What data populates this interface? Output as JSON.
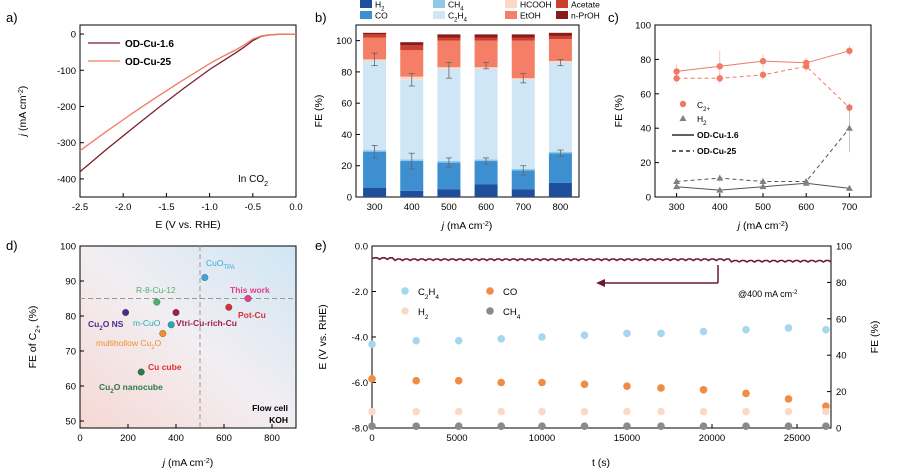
{
  "chart_data": [
    {
      "panel": "a",
      "type": "line",
      "xlabel": "E (V vs. RHE)",
      "ylabel": "j (mA cm-2)",
      "xlim": [
        -2.5,
        0.0
      ],
      "ylim": [
        -450,
        25
      ],
      "xticks": [
        -2.5,
        -2.0,
        -1.5,
        -1.0,
        -0.5,
        0.0
      ],
      "yticks": [
        0,
        -100,
        -200,
        -300,
        -400
      ],
      "annotation": "In CO2",
      "series": [
        {
          "name": "OD-Cu-1.6",
          "color": "#7a1f2b",
          "x": [
            -2.5,
            -2.2,
            -1.9,
            -1.6,
            -1.3,
            -1.0,
            -0.85,
            -0.7,
            -0.6,
            -0.5,
            -0.4,
            -0.3,
            -0.2,
            -0.1,
            0.0
          ],
          "y": [
            -380,
            -320,
            -262,
            -205,
            -150,
            -98,
            -75,
            -52,
            -36,
            -18,
            -6,
            -2,
            -1,
            0,
            0
          ]
        },
        {
          "name": "OD-Cu-25",
          "color": "#f07b64",
          "x": [
            -2.5,
            -2.2,
            -1.9,
            -1.6,
            -1.3,
            -1.0,
            -0.85,
            -0.7,
            -0.6,
            -0.5,
            -0.4,
            -0.3,
            -0.2,
            -0.1,
            0.0
          ],
          "y": [
            -322,
            -270,
            -220,
            -172,
            -126,
            -82,
            -62,
            -44,
            -30,
            -14,
            -5,
            -2,
            -1,
            0,
            0
          ]
        }
      ]
    },
    {
      "panel": "b",
      "type": "bar",
      "stacked": true,
      "xlabel": "j (mA cm-2)",
      "ylabel": "FE (%)",
      "ylim": [
        0,
        110
      ],
      "yticks": [
        0,
        20,
        40,
        60,
        80,
        100
      ],
      "categories": [
        "300",
        "400",
        "500",
        "600",
        "700",
        "800"
      ],
      "series": [
        {
          "name": "H2",
          "label": "H",
          "sub": "2",
          "color": "#1f4f9c",
          "values": [
            6,
            4,
            5,
            8,
            5,
            9
          ]
        },
        {
          "name": "CO",
          "label": "CO",
          "sub": "",
          "color": "#3d8fd0",
          "values": [
            23,
            19,
            17,
            15,
            12,
            19
          ]
        },
        {
          "name": "CH4",
          "label": "CH",
          "sub": "4",
          "color": "#8ec9e8",
          "values": [
            1,
            1,
            1,
            1,
            1,
            1
          ]
        },
        {
          "name": "C2H4",
          "label": "C",
          "sub": "2",
          "label2": "H",
          "sub2": "4",
          "color": "#cfe6f6",
          "values": [
            57,
            51,
            59,
            58,
            57,
            57
          ]
        },
        {
          "name": "HCOOH",
          "label": "HCOOH",
          "sub": "",
          "color": "#fbd8c8",
          "values": [
            1,
            2,
            1,
            1,
            1,
            1
          ]
        },
        {
          "name": "EtOH",
          "label": "EtOH",
          "sub": "",
          "color": "#f47e66",
          "values": [
            14,
            17,
            17,
            17,
            24,
            14
          ]
        },
        {
          "name": "Acetate",
          "label": "Acetate",
          "sub": "",
          "color": "#c94030",
          "values": [
            2,
            3,
            2,
            2,
            2,
            2
          ]
        },
        {
          "name": "n-PrOH",
          "label": "n-PrOH",
          "sub": "",
          "color": "#8b1a1a",
          "values": [
            1,
            2,
            2,
            2,
            2,
            2
          ]
        }
      ],
      "error_bars": [
        {
          "at": 29,
          "err": 4
        },
        {
          "at": 88,
          "err": 4
        },
        {
          "at": 23,
          "err": 5
        },
        {
          "at": 75,
          "err": 4
        },
        {
          "at": 22,
          "err": 3
        },
        {
          "at": 81,
          "err": 5
        },
        {
          "at": 23,
          "err": 2
        },
        {
          "at": 84,
          "err": 2
        },
        {
          "at": 17,
          "err": 3
        },
        {
          "at": 76,
          "err": 3
        },
        {
          "at": 28,
          "err": 2
        },
        {
          "at": 86,
          "err": 2
        }
      ]
    },
    {
      "panel": "c",
      "type": "line",
      "xlabel": "j (mA cm-2)",
      "ylabel": "FE (%)",
      "xlim": [
        250,
        750
      ],
      "ylim": [
        0,
        100
      ],
      "xticks": [
        300,
        400,
        500,
        600,
        700
      ],
      "yticks": [
        0,
        20,
        40,
        60,
        80,
        100
      ],
      "x": [
        300,
        400,
        500,
        600,
        700
      ],
      "series": [
        {
          "name": "C2+ OD-Cu-1.6",
          "color": "#f07b64",
          "marker": "circle",
          "dash": false,
          "values": [
            73,
            76,
            79,
            78,
            85
          ],
          "err": [
            4,
            9,
            4,
            3,
            3
          ]
        },
        {
          "name": "C2+ OD-Cu-25",
          "color": "#f07b64",
          "marker": "circle",
          "dash": true,
          "values": [
            69,
            69,
            71,
            76,
            52
          ],
          "err": [
            3,
            3,
            3,
            3,
            3
          ]
        },
        {
          "name": "H2 OD-Cu-1.6",
          "color": "#808080",
          "marker": "triangle",
          "dash": false,
          "values": [
            6,
            4,
            6,
            8,
            5
          ],
          "err": [
            1,
            1,
            1,
            1,
            1
          ]
        },
        {
          "name": "H2 OD-Cu-25",
          "color": "#808080",
          "marker": "triangle",
          "dash": true,
          "values": [
            9,
            11,
            9,
            9,
            40
          ],
          "err": [
            2,
            2,
            2,
            2,
            14
          ]
        }
      ],
      "legend": {
        "c2": "C",
        "c2_sub": "2+",
        "h2": "H",
        "h2_sub": "2",
        "solid": "OD-Cu-1.6",
        "dashed": "OD-Cu-25"
      }
    },
    {
      "panel": "d",
      "type": "scatter",
      "xlabel": "j (mA cm-2)",
      "ylabel": "FE of C2+ (%)",
      "xlim": [
        0,
        900
      ],
      "ylim": [
        48,
        100
      ],
      "xticks": [
        0,
        200,
        400,
        600,
        800
      ],
      "yticks": [
        50,
        60,
        70,
        80,
        90,
        100
      ],
      "ref_lines": {
        "x": 500,
        "y": 85
      },
      "annotation_lines": [
        "Flow cell",
        "KOH"
      ],
      "points": [
        {
          "label": "CuO",
          "sub": "TPA",
          "x": 520,
          "y": 91,
          "color": "#3aa6d8",
          "label_color": "#3aa6d8"
        },
        {
          "label": "This work",
          "x": 700,
          "y": 85,
          "color": "#e63c8c",
          "label_color": "#e63c8c"
        },
        {
          "label": "R-8-Cu-12",
          "x": 320,
          "y": 84,
          "color": "#4bb46a",
          "label_color": "#4bb46a"
        },
        {
          "label": "Pot-Cu",
          "x": 620,
          "y": 82.5,
          "color": "#d93030",
          "label_color": "#d93030"
        },
        {
          "label": "Cu2O NS",
          "x": 190,
          "y": 81,
          "color": "#4a2c8c",
          "label_color": "#4a2c8c"
        },
        {
          "label": "Vtri-Cu-rich-Cu",
          "x": 400,
          "y": 81,
          "color": "#9c1f4c",
          "label_color": "#9c1f4c"
        },
        {
          "label": "m-CuO",
          "x": 380,
          "y": 77.5,
          "color": "#2aa8b8",
          "label_color": "#2aa8b8"
        },
        {
          "label": "multihollow Cu2O",
          "x": 345,
          "y": 75,
          "color": "#f0902a",
          "label_color": "#f0902a"
        },
        {
          "label": "Cu cube",
          "x": 255,
          "y": 64,
          "color": "#2c7a4a",
          "label_color": "#e0302a"
        },
        {
          "label": "Cu2O nanocube",
          "x": 250,
          "y": 64,
          "color": "#2c7a4a",
          "label_color": "#2c7a4a"
        }
      ]
    },
    {
      "panel": "e",
      "type": "scatter",
      "xlabel": "t (s)",
      "ylabel": "E (V vs. RHE)",
      "ylabel_right": "FE (%)",
      "xlim": [
        0,
        27000
      ],
      "ylim": [
        -8.0,
        0.0
      ],
      "ylim_right": [
        0,
        100
      ],
      "xticks": [
        0,
        5000,
        10000,
        15000,
        20000,
        25000
      ],
      "yticks": [
        0.0,
        -2.0,
        -4.0,
        -6.0,
        -8.0
      ],
      "yticks_right": [
        0,
        20,
        40,
        60,
        80,
        100
      ],
      "annotation": "@400 mA cm-2",
      "potential_level": -0.6,
      "legend": [
        {
          "label": "C",
          "sub": "2",
          "label2": "H",
          "sub2": "4",
          "color": "#a9d6ef"
        },
        {
          "label": "CO",
          "sub": "",
          "color": "#f08c44"
        },
        {
          "label": "H",
          "sub": "2",
          "color": "#fcd9c6"
        },
        {
          "label": "CH",
          "sub": "4",
          "color": "#8a8a8a"
        }
      ],
      "x": [
        0,
        2600,
        5100,
        7600,
        10000,
        12500,
        15000,
        17000,
        19500,
        22000,
        24500,
        26700
      ],
      "series": [
        {
          "name": "C2H4",
          "color": "#a9d6ef",
          "values": [
            46,
            48,
            48,
            49,
            50,
            51,
            52,
            52,
            53,
            54,
            55,
            54
          ]
        },
        {
          "name": "CO",
          "color": "#f08c44",
          "values": [
            27,
            26,
            26,
            25,
            25,
            24,
            23,
            22,
            21,
            19,
            16,
            12
          ]
        },
        {
          "name": "H2",
          "color": "#fcd9c6",
          "values": [
            9,
            9,
            9,
            9,
            9,
            9,
            9,
            9,
            9,
            9,
            9,
            9
          ]
        },
        {
          "name": "CH4",
          "color": "#8a8a8a",
          "values": [
            1,
            1,
            1,
            1,
            1,
            1,
            1,
            1,
            1,
            1,
            1,
            1
          ]
        }
      ]
    }
  ],
  "labels": {
    "a": "a)",
    "b": "b)",
    "c": "c)",
    "d": "d)",
    "e": "e)",
    "in_co2_main": "In CO",
    "in_co2_sub": "2",
    "e_axis_a": "E (V vs. RHE)",
    "j_italic": "j",
    "unit_ma": " (mA cm",
    "unit_pow": "-2",
    "unit_close": ")",
    "fe_axis": "FE (%)",
    "d_y_pre": "FE of C",
    "d_y_sub": "2+",
    "d_y_post": " (%)",
    "e_y": "E (V vs. RHE)",
    "e_x": "t (s)",
    "e_annot_pre": "@400 mA cm",
    "e_annot_pow": "-2",
    "cu2o_ns_pre": "Cu",
    "cu2o_ns_sub": "2",
    "cu2o_ns_post": "O NS",
    "m_cuo": "m-CuO",
    "multihollow_pre": "multihollow Cu",
    "multihollow_sub": "2",
    "multihollow_post": "O",
    "cu2o_nc_pre": "Cu",
    "cu2o_nc_sub": "2",
    "cu2o_nc_post": "O nanocube",
    "cuo_tpa_pre": "CuO",
    "cuo_tpa_sub": "TPA",
    "flow_cell": "Flow cell",
    "koh": "KOH"
  }
}
